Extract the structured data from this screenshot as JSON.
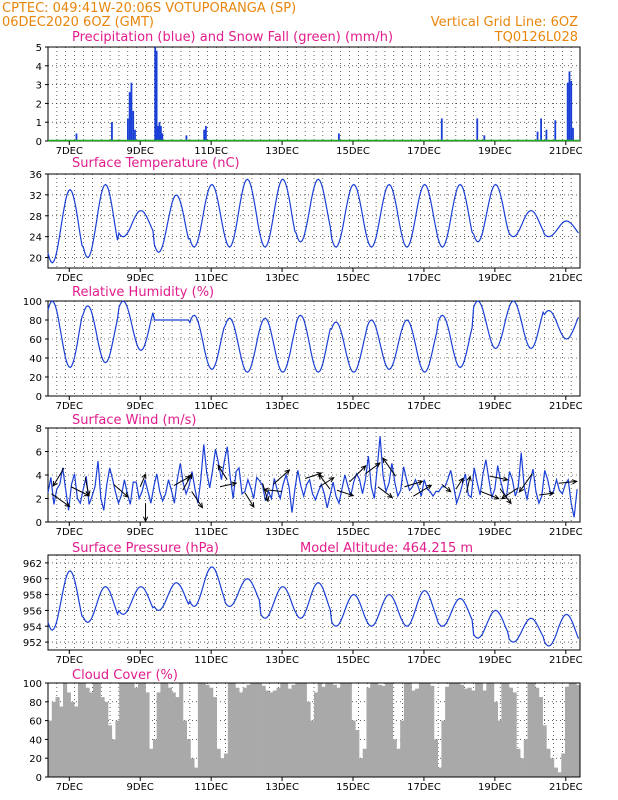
{
  "header": {
    "left_line1": "CPTEC:   049:41W-20:06S   VOTUPORANGA (SP)",
    "left_line2": "06DEC2020 6OZ (GMT)",
    "right_line1": "Vertical Grid Line: 6OZ",
    "right_line2": "TQ0126L028"
  },
  "colors": {
    "header": "#e8860c",
    "title": "#e21c8c",
    "line": "#1a3fd6",
    "snow": "#1faa1f",
    "cloud": "#a9a9a9",
    "wind_arrow": "#000000"
  },
  "chart_data": [
    {
      "id": "precip",
      "type": "bar",
      "title": "Precipitation (blue) and Snow Fall (green) (mm/h)",
      "ylim": [
        0,
        5
      ],
      "yticks": [
        0,
        1,
        2,
        3,
        4,
        5
      ],
      "x_labels": [
        "7DEC",
        "9DEC",
        "11DEC",
        "13DEC",
        "15DEC",
        "17DEC",
        "19DEC",
        "21DEC"
      ],
      "rain_events": [
        [
          0.8,
          0.4
        ],
        [
          1.8,
          1.0
        ],
        [
          2.25,
          1.2
        ],
        [
          2.3,
          2.6
        ],
        [
          2.35,
          3.1
        ],
        [
          2.4,
          1.6
        ],
        [
          2.45,
          0.6
        ],
        [
          3.02,
          5.0
        ],
        [
          3.06,
          4.8
        ],
        [
          3.1,
          0.8
        ],
        [
          3.14,
          1.0
        ],
        [
          3.18,
          0.8
        ],
        [
          3.22,
          0.4
        ],
        [
          3.9,
          0.3
        ],
        [
          4.4,
          0.6
        ],
        [
          4.45,
          0.8
        ],
        [
          8.2,
          0.4
        ],
        [
          11.1,
          1.2
        ],
        [
          12.1,
          1.2
        ],
        [
          12.3,
          0.3
        ],
        [
          13.8,
          0.5
        ],
        [
          13.9,
          1.2
        ],
        [
          14.05,
          0.6
        ],
        [
          14.3,
          1.1
        ],
        [
          14.65,
          3.1
        ],
        [
          14.7,
          3.7
        ],
        [
          14.75,
          3.2
        ],
        [
          14.8,
          0.7
        ]
      ],
      "snow": 0
    },
    {
      "id": "temp",
      "type": "line",
      "title": "Surface Temperature (nC)",
      "ylim": [
        18,
        36
      ],
      "yticks": [
        20,
        24,
        28,
        32,
        36
      ],
      "x_labels": [
        "7DEC",
        "9DEC",
        "11DEC",
        "13DEC",
        "15DEC",
        "17DEC",
        "19DEC",
        "21DEC"
      ],
      "daily_min": [
        19,
        20,
        24,
        21,
        22,
        22,
        22,
        23,
        22,
        22,
        22,
        22,
        23,
        24,
        24
      ],
      "daily_max": [
        33,
        34,
        29,
        32,
        34,
        35,
        35,
        35,
        34,
        34,
        34,
        34,
        34,
        29,
        27
      ]
    },
    {
      "id": "rh",
      "type": "line",
      "title": "Relative Humidity (%)",
      "ylim": [
        0,
        100
      ],
      "yticks": [
        0,
        20,
        40,
        60,
        80,
        100
      ],
      "x_labels": [
        "7DEC",
        "9DEC",
        "11DEC",
        "13DEC",
        "15DEC",
        "17DEC",
        "19DEC",
        "21DEC"
      ],
      "daily_min": [
        30,
        35,
        48,
        80,
        28,
        25,
        25,
        25,
        25,
        28,
        25,
        30,
        50,
        50,
        60
      ],
      "daily_max": [
        100,
        95,
        100,
        80,
        85,
        82,
        82,
        85,
        78,
        80,
        80,
        85,
        100,
        100,
        90
      ]
    },
    {
      "id": "wind",
      "type": "line",
      "title": "Surface Wind (m/s)",
      "ylim": [
        0,
        8
      ],
      "yticks": [
        0,
        2,
        4,
        6,
        8
      ],
      "x_labels": [
        "7DEC",
        "9DEC",
        "11DEC",
        "13DEC",
        "15DEC",
        "17DEC",
        "19DEC",
        "21DEC"
      ],
      "values": [
        2.5,
        3.8,
        1.5,
        2.8,
        3.2,
        4.6,
        2.8,
        1.0,
        3.2,
        4.1,
        2.0,
        1.6,
        2.8,
        3.9,
        1.5,
        2.2,
        3.0,
        5.2,
        2.0,
        1.0,
        3.2,
        4.6,
        3.6,
        2.5,
        1.6,
        2.3,
        3.6,
        2.4,
        1.5,
        3.4,
        3.4,
        2.0,
        2.6,
        3.6,
        2.6,
        1.6,
        3.0,
        4.1,
        2.6,
        1.8,
        2.4,
        3.6,
        2.7,
        1.6,
        3.6,
        5.0,
        3.3,
        2.4,
        3.1,
        4.3,
        2.8,
        1.6,
        3.6,
        6.6,
        4.2,
        2.9,
        4.4,
        6.2,
        5.0,
        3.6,
        5.2,
        6.4,
        3.8,
        2.0,
        4.3,
        4.6,
        2.4,
        2.6,
        3.6,
        2.9,
        2.0,
        3.8,
        3.5,
        3.1,
        1.8,
        2.6,
        2.0,
        3.7,
        2.7,
        2.0,
        3.2,
        4.0,
        3.0,
        0.8,
        2.8,
        4.4,
        3.1,
        2.2,
        3.2,
        3.6,
        2.4,
        1.9,
        2.6,
        3.2,
        2.4,
        1.2,
        2.3,
        3.4,
        2.2,
        1.6,
        2.8,
        4.0,
        3.1,
        2.2,
        3.4,
        4.1,
        3.6,
        2.4,
        3.6,
        5.6,
        3.0,
        2.0,
        4.6,
        7.3,
        3.9,
        2.6,
        3.3,
        5.0,
        3.4,
        2.2,
        2.7,
        4.7,
        3.6,
        2.7,
        3.0,
        3.6,
        3.0,
        2.2,
        3.6,
        2.8,
        2.6,
        2.2,
        2.6,
        2.6,
        3.0,
        3.0,
        3.6,
        4.4,
        3.1,
        1.6,
        2.3,
        3.2,
        4.1,
        2.3,
        2.1,
        4.6,
        3.4,
        2.3,
        4.1,
        5.3,
        3.6,
        2.1,
        2.8,
        4.8,
        3.5,
        2.5,
        2.1,
        4.3,
        3.6,
        2.2,
        3.0,
        5.9,
        3.0,
        1.9,
        3.4,
        4.5,
        2.6,
        1.6,
        2.2,
        4.4,
        3.6,
        2.4,
        2.6,
        3.6,
        2.7,
        2.4,
        3.2,
        3.6,
        1.6,
        0.4,
        2.8
      ],
      "arrows": [
        [
          0.1,
          2.4
        ],
        [
          0.45,
          4.6
        ],
        [
          0.65,
          3.0
        ],
        [
          1.05,
          3.8
        ],
        [
          1.85,
          3.2
        ],
        [
          2.6,
          3.0
        ],
        [
          2.75,
          1.6
        ],
        [
          3.55,
          3.1
        ],
        [
          3.8,
          2.7
        ],
        [
          4.05,
          2.6
        ],
        [
          4.85,
          3.0
        ],
        [
          5.05,
          3.6
        ],
        [
          5.55,
          2.5
        ],
        [
          6.05,
          3.3
        ],
        [
          6.35,
          3.2
        ],
        [
          6.6,
          2.6
        ],
        [
          7.25,
          3.7
        ],
        [
          7.65,
          3.0
        ],
        [
          7.95,
          2.8
        ],
        [
          8.15,
          2.7
        ],
        [
          8.5,
          3.4
        ],
        [
          8.95,
          4.1
        ],
        [
          9.3,
          3.0
        ],
        [
          9.8,
          3.9
        ],
        [
          10.05,
          3.0
        ],
        [
          10.3,
          2.2
        ],
        [
          11.1,
          3.2
        ],
        [
          11.5,
          2.8
        ],
        [
          11.8,
          2.5
        ],
        [
          12.2,
          2.6
        ],
        [
          12.45,
          3.9
        ],
        [
          12.75,
          2.8
        ],
        [
          13.25,
          2.9
        ],
        [
          13.65,
          4.1
        ],
        [
          13.85,
          2.3
        ],
        [
          14.4,
          3.3
        ]
      ],
      "arrow_vectors": [
        [
          1,
          0.7
        ],
        [
          -0.6,
          1
        ],
        [
          1,
          0.5
        ],
        [
          0.2,
          1
        ],
        [
          0.8,
          0.7
        ],
        [
          0.3,
          -0.7
        ],
        [
          0,
          1
        ],
        [
          0.9,
          -0.5
        ],
        [
          0.5,
          -0.9
        ],
        [
          0.6,
          0.9
        ],
        [
          0.9,
          -0.2
        ],
        [
          -0.5,
          -0.8
        ],
        [
          0.5,
          0.8
        ],
        [
          0.3,
          1
        ],
        [
          0.9,
          -0.8
        ],
        [
          -1,
          -0.1
        ],
        [
          0.9,
          -0.3
        ],
        [
          0.8,
          -0.5
        ],
        [
          -0.6,
          -0.8
        ],
        [
          0.9,
          0.3
        ],
        [
          0.9,
          -0.9
        ],
        [
          0.8,
          -0.6
        ],
        [
          0.8,
          0.6
        ],
        [
          -0.7,
          -1
        ],
        [
          1,
          -0.3
        ],
        [
          1,
          -0.6
        ],
        [
          0.5,
          0.4
        ],
        [
          0.4,
          -0.6
        ],
        [
          0.2,
          -0.9
        ],
        [
          1,
          0.4
        ],
        [
          1,
          0.2
        ],
        [
          0.6,
          0.8
        ],
        [
          -0.9,
          0.6
        ],
        [
          -0.7,
          1
        ],
        [
          0.8,
          -0.1
        ],
        [
          1,
          -0.1
        ]
      ]
    },
    {
      "id": "pres",
      "type": "line",
      "title": "Surface Pressure (hPa)",
      "annotation": "Model Altitude: 464.215 m",
      "ylim": [
        951,
        963
      ],
      "yticks": [
        952,
        954,
        956,
        958,
        960,
        962
      ],
      "x_labels": [
        "7DEC",
        "9DEC",
        "11DEC",
        "13DEC",
        "15DEC",
        "17DEC",
        "19DEC",
        "21DEC"
      ],
      "daily_min": [
        953.5,
        954.5,
        955.5,
        956.0,
        956.5,
        956.5,
        955.0,
        955.0,
        954.0,
        954.0,
        954.0,
        954.0,
        952.5,
        952.0,
        951.5
      ],
      "daily_max": [
        961.0,
        959.0,
        959.0,
        959.5,
        961.5,
        960.0,
        959.0,
        959.5,
        958.0,
        958.0,
        958.5,
        957.5,
        956.0,
        955.0,
        955.5
      ]
    },
    {
      "id": "cloud",
      "type": "area",
      "title": "Cloud Cover (%)",
      "ylim": [
        0,
        100
      ],
      "yticks": [
        0,
        20,
        40,
        60,
        80,
        100
      ],
      "x_labels": [
        "7DEC",
        "9DEC",
        "11DEC",
        "13DEC",
        "15DEC",
        "17DEC",
        "19DEC",
        "21DEC"
      ],
      "values": [
        60,
        80,
        85,
        75,
        100,
        90,
        80,
        75,
        100,
        100,
        95,
        90,
        100,
        100,
        85,
        80,
        55,
        40,
        60,
        100,
        100,
        100,
        100,
        95,
        100,
        100,
        90,
        30,
        40,
        90,
        100,
        100,
        95,
        90,
        85,
        100,
        60,
        40,
        20,
        10,
        100,
        100,
        98,
        95,
        85,
        30,
        20,
        25,
        100,
        100,
        95,
        90,
        95,
        98,
        100,
        100,
        100,
        97,
        92,
        90,
        92,
        95,
        100,
        100,
        94,
        98,
        100,
        100,
        100,
        80,
        60,
        90,
        100,
        96,
        100,
        100,
        98,
        95,
        100,
        100,
        100,
        60,
        50,
        20,
        30,
        95,
        100,
        100,
        98,
        97,
        100,
        100,
        40,
        30,
        60,
        100,
        100,
        92,
        94,
        100,
        100,
        100,
        97,
        40,
        10,
        60,
        96,
        100,
        100,
        100,
        98,
        94,
        95,
        92,
        100,
        100,
        92,
        100,
        100,
        80,
        60,
        100,
        100,
        95,
        90,
        30,
        20,
        40,
        100,
        100,
        95,
        85,
        55,
        30,
        20,
        10,
        5,
        25,
        96,
        100,
        100,
        98
      ]
    }
  ]
}
